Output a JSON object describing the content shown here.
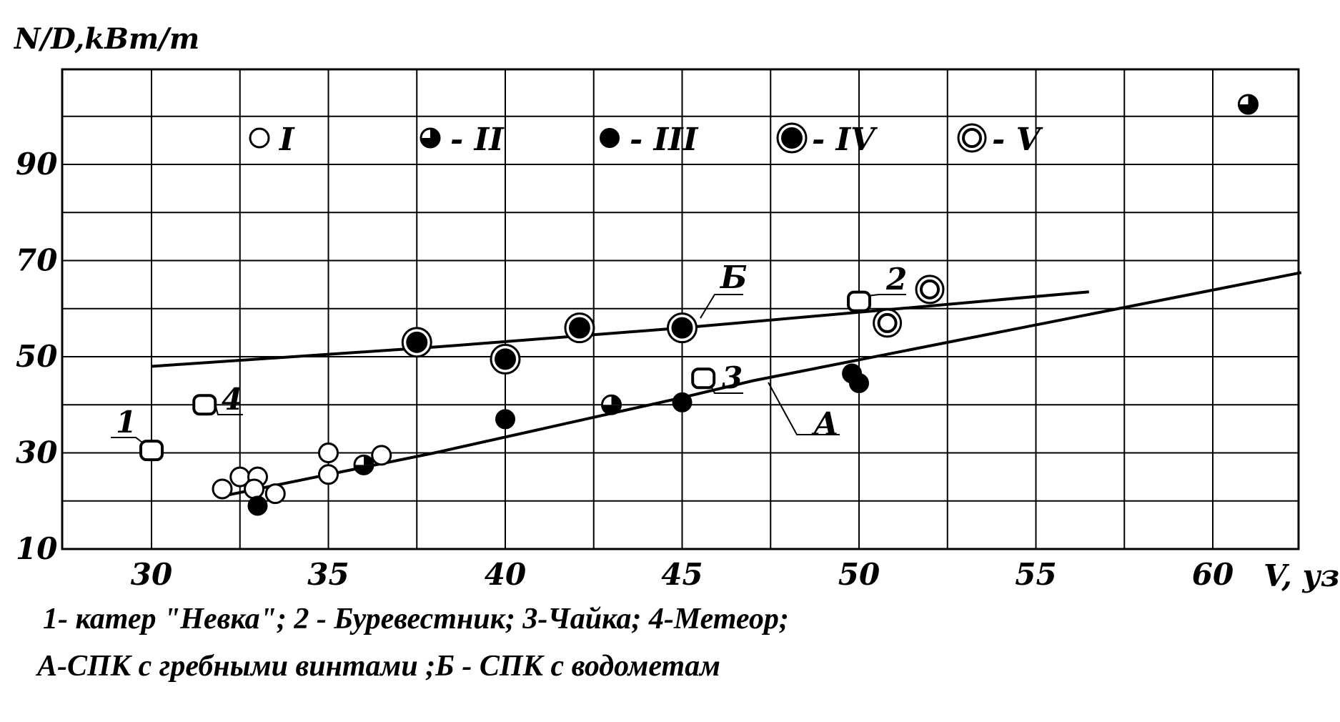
{
  "chart_data": {
    "type": "scatter",
    "ylabel": "N/D,kBm/m",
    "xlabel": "V, уз",
    "xlim": [
      27.5,
      62.7
    ],
    "ylim": [
      10,
      108
    ],
    "x_ticks": [
      "30",
      "35",
      "40",
      "45",
      "50",
      "55",
      "60"
    ],
    "y_ticks": [
      "10",
      "30",
      "50",
      "70",
      "90"
    ],
    "grid": true,
    "legend": [
      {
        "marker": "open-circle",
        "label": "I"
      },
      {
        "marker": "half-filled-circle",
        "label": "- II"
      },
      {
        "marker": "filled-circle",
        "label": "- III"
      },
      {
        "marker": "ringed-filled-circle",
        "label": "- IV"
      },
      {
        "marker": "double-ring-circle",
        "label": "- V"
      }
    ],
    "series": [
      {
        "name": "I",
        "marker": "open-circle",
        "points": [
          [
            32.0,
            22.5
          ],
          [
            32.5,
            25
          ],
          [
            33.0,
            25
          ],
          [
            32.9,
            22.5
          ],
          [
            33.5,
            21.5
          ],
          [
            35.0,
            30
          ],
          [
            35.0,
            25.5
          ],
          [
            36.5,
            29.5
          ]
        ]
      },
      {
        "name": "II",
        "marker": "half-filled-circle",
        "points": [
          [
            36.0,
            27.5
          ],
          [
            43.0,
            40
          ],
          [
            61.0,
            102.5
          ]
        ]
      },
      {
        "name": "III",
        "marker": "filled-circle",
        "points": [
          [
            33.0,
            19
          ],
          [
            40.0,
            37
          ],
          [
            45.0,
            40.5
          ],
          [
            49.8,
            46.5
          ],
          [
            50.0,
            44.5
          ]
        ]
      },
      {
        "name": "IV",
        "marker": "ringed-filled-circle",
        "points": [
          [
            37.5,
            53
          ],
          [
            40.0,
            49.5
          ],
          [
            42.1,
            56
          ],
          [
            45.0,
            56
          ]
        ]
      },
      {
        "name": "V",
        "marker": "double-ring-circle",
        "points": [
          [
            52.0,
            64
          ],
          [
            50.8,
            57
          ]
        ]
      }
    ],
    "vessels": [
      {
        "label": "1",
        "x": 30.0,
        "y": 30.5
      },
      {
        "label": "2",
        "x": 50.0,
        "y": 61.5
      },
      {
        "label": "3",
        "x": 45.6,
        "y": 45.5
      },
      {
        "label": "4",
        "x": 31.5,
        "y": 40
      }
    ],
    "lines": [
      {
        "label": "А",
        "x": [
          32.0,
          38.0,
          45.0,
          47.0,
          62.5
        ],
        "y": [
          21.0,
          30.0,
          41.5,
          45.0,
          67.5
        ]
      },
      {
        "label": "Б",
        "x": [
          30.0,
          38.0,
          45.0,
          56.5
        ],
        "y": [
          48.0,
          52.0,
          56.0,
          63.5
        ]
      }
    ]
  },
  "caption": {
    "line1": "1- катер \"Невка\"; 2 - Буревестник; 3-Чайка; 4-Метеор;",
    "line2": "А-СПК с гребными  винтами ;Б - СПК с водометам"
  },
  "colors": {
    "ink": "#000000",
    "background": "#ffffff"
  }
}
